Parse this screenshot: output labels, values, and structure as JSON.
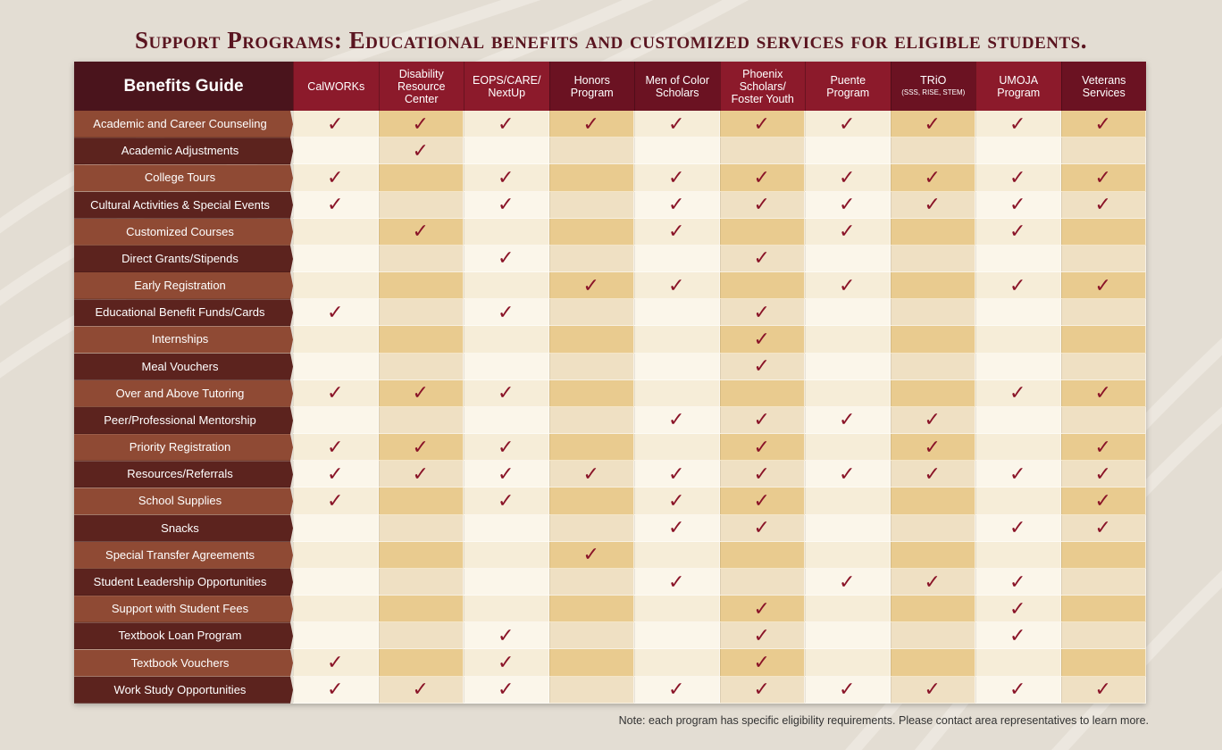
{
  "title": "Support Programs:  Educational benefits and customized services for eligible students.",
  "corner_label": "Benefits Guide",
  "note": "Note: each program has specific eligibility requirements.  Please contact area representatives to learn more.",
  "check_glyph": "✓",
  "colors": {
    "row_label_a": "#8f4a34",
    "row_label_b": "#5c231e",
    "header_a": "#8c1a2b",
    "header_b": "#6b1222",
    "check": "#8a1428",
    "column_shades": [
      "#fbf6ea",
      "#f6edd8",
      "#e9cb8f",
      "#efe0c3"
    ]
  },
  "columns": [
    {
      "label": "CalWORKs"
    },
    {
      "label": "Disability Resource Center"
    },
    {
      "label": "EOPS/CARE/ NextUp"
    },
    {
      "label": "Honors Program"
    },
    {
      "label": "Men of Color Scholars"
    },
    {
      "label": "Phoenix Scholars/ Foster Youth"
    },
    {
      "label": "Puente Program"
    },
    {
      "label": "TRiO",
      "sublabel": "(SSS, RISE, STEM)"
    },
    {
      "label": "UMOJA Program"
    },
    {
      "label": "Veterans Services"
    }
  ],
  "rows": [
    {
      "label": "Academic and Career Counseling",
      "checks": [
        1,
        1,
        1,
        1,
        1,
        1,
        1,
        1,
        1,
        1
      ]
    },
    {
      "label": "Academic Adjustments",
      "checks": [
        0,
        1,
        0,
        0,
        0,
        0,
        0,
        0,
        0,
        0
      ]
    },
    {
      "label": "College Tours",
      "checks": [
        1,
        0,
        1,
        0,
        1,
        1,
        1,
        1,
        1,
        1
      ]
    },
    {
      "label": "Cultural Activities & Special Events",
      "checks": [
        1,
        0,
        1,
        0,
        1,
        1,
        1,
        1,
        1,
        1
      ]
    },
    {
      "label": "Customized Courses",
      "checks": [
        0,
        1,
        0,
        0,
        1,
        0,
        1,
        0,
        1,
        0
      ]
    },
    {
      "label": "Direct Grants/Stipends",
      "checks": [
        0,
        0,
        1,
        0,
        0,
        1,
        0,
        0,
        0,
        0
      ]
    },
    {
      "label": "Early Registration",
      "checks": [
        0,
        0,
        0,
        1,
        1,
        0,
        1,
        0,
        1,
        1
      ]
    },
    {
      "label": "Educational Benefit Funds/Cards",
      "checks": [
        1,
        0,
        1,
        0,
        0,
        1,
        0,
        0,
        0,
        0
      ]
    },
    {
      "label": "Internships",
      "checks": [
        0,
        0,
        0,
        0,
        0,
        1,
        0,
        0,
        0,
        0
      ]
    },
    {
      "label": "Meal Vouchers",
      "checks": [
        0,
        0,
        0,
        0,
        0,
        1,
        0,
        0,
        0,
        0
      ]
    },
    {
      "label": "Over and Above Tutoring",
      "checks": [
        1,
        1,
        1,
        0,
        0,
        0,
        0,
        0,
        1,
        1
      ]
    },
    {
      "label": "Peer/Professional Mentorship",
      "checks": [
        0,
        0,
        0,
        0,
        1,
        1,
        1,
        1,
        0,
        0
      ]
    },
    {
      "label": "Priority Registration",
      "checks": [
        1,
        1,
        1,
        0,
        0,
        1,
        0,
        1,
        0,
        1
      ]
    },
    {
      "label": "Resources/Referrals",
      "checks": [
        1,
        1,
        1,
        1,
        1,
        1,
        1,
        1,
        1,
        1
      ]
    },
    {
      "label": "School Supplies",
      "checks": [
        1,
        0,
        1,
        0,
        1,
        1,
        0,
        0,
        0,
        1
      ]
    },
    {
      "label": "Snacks",
      "checks": [
        0,
        0,
        0,
        0,
        1,
        1,
        0,
        0,
        1,
        1
      ]
    },
    {
      "label": "Special Transfer Agreements",
      "checks": [
        0,
        0,
        0,
        1,
        0,
        0,
        0,
        0,
        0,
        0
      ]
    },
    {
      "label": "Student Leadership Opportunities",
      "checks": [
        0,
        0,
        0,
        0,
        1,
        0,
        1,
        1,
        1,
        0
      ]
    },
    {
      "label": "Support with Student Fees",
      "checks": [
        0,
        0,
        0,
        0,
        0,
        1,
        0,
        0,
        1,
        0
      ]
    },
    {
      "label": "Textbook Loan Program",
      "checks": [
        0,
        0,
        1,
        0,
        0,
        1,
        0,
        0,
        1,
        0
      ]
    },
    {
      "label": "Textbook Vouchers",
      "checks": [
        1,
        0,
        1,
        0,
        0,
        1,
        0,
        0,
        0,
        0
      ]
    },
    {
      "label": "Work Study Opportunities",
      "checks": [
        1,
        1,
        1,
        0,
        1,
        1,
        1,
        1,
        1,
        1
      ]
    }
  ]
}
